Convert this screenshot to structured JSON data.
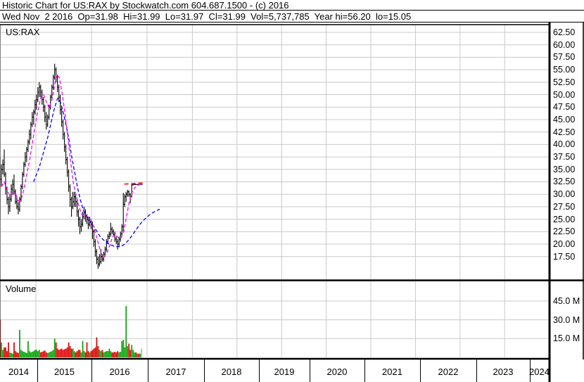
{
  "header": {
    "line1": "Historic Chart for US:RAX by Stockwatch.com 604.687.1500 - (c) 2016",
    "line2": "Wed Nov  2 2016  Op=31.98  Hi=31.99  Lo=31.97  Cl=31.99  Vol=5,737,785  Year hi=56.20  lo=15.05"
  },
  "price_panel": {
    "symbol_label": "US:RAX"
  },
  "volume_panel": {
    "label": "Volume"
  },
  "colors": {
    "grid": "#c9c9c9",
    "border": "#000000",
    "candle": "#000000",
    "down_tick": "#ff0000",
    "ma_fast": "#ff00ff",
    "ma_slow": "#0000ff",
    "deal_line": "#ff0000",
    "vol_up": "#00a400",
    "vol_down": "#dd0000",
    "vol_na": "#b0b0b0"
  },
  "chart_data": {
    "type": "candlestick+volume",
    "title": "Historic Chart for US:RAX",
    "symbol": "US:RAX",
    "quote": {
      "date": "Wed Nov 2 2016",
      "open": 31.98,
      "high": 31.99,
      "low": 31.97,
      "close": 31.99,
      "volume": "5,737,785",
      "year_high": 56.2,
      "year_low": 15.05
    },
    "price_axis": {
      "side": "right",
      "ticks": [
        "62.50",
        "60.00",
        "57.50",
        "55.00",
        "52.50",
        "50.00",
        "47.50",
        "45.00",
        "42.50",
        "40.00",
        "37.50",
        "35.00",
        "32.50",
        "30.00",
        "27.50",
        "25.00",
        "22.50",
        "20.00",
        "17.50"
      ],
      "range": [
        15.0,
        63.75
      ]
    },
    "volume_axis": {
      "side": "right",
      "ticks": [
        "45.0 M",
        "30.0 M",
        "15.0 M"
      ],
      "range_m": [
        0,
        60
      ]
    },
    "x_axis": {
      "years": [
        "2014",
        "2015",
        "2016",
        "2017",
        "2018",
        "2019",
        "2020",
        "2021",
        "2022",
        "2023",
        "2024"
      ],
      "grid": true
    },
    "weekly": {
      "start_year": 2014.355,
      "step_years": 0.0252,
      "bars_format": [
        "open",
        "high",
        "low",
        "close",
        "volume_m",
        "volume_color"
      ],
      "bars": [
        [
          36,
          37.5,
          25,
          33,
          30,
          "r"
        ],
        [
          33,
          36,
          31.5,
          35,
          12,
          "g"
        ],
        [
          35,
          37,
          34,
          36,
          6,
          "g"
        ],
        [
          36,
          39,
          33.5,
          34,
          8,
          "r"
        ],
        [
          34,
          34.5,
          30,
          31,
          8,
          "r"
        ],
        [
          31,
          31.5,
          28,
          29,
          5,
          "r"
        ],
        [
          29,
          29.5,
          26,
          27.5,
          12,
          "r"
        ],
        [
          27.5,
          30,
          26.5,
          29,
          4,
          "g"
        ],
        [
          29,
          32,
          28.5,
          31,
          3.5,
          "g"
        ],
        [
          31,
          33,
          30,
          32,
          3,
          "g"
        ],
        [
          32,
          34,
          30,
          30.5,
          12,
          "r"
        ],
        [
          30.5,
          31,
          28,
          28.5,
          5,
          "r"
        ],
        [
          28.5,
          29.5,
          27,
          27.5,
          4,
          "r"
        ],
        [
          27.5,
          28.5,
          26,
          27,
          3.5,
          "r"
        ],
        [
          27,
          29.5,
          26.5,
          29,
          22,
          "g"
        ],
        [
          29,
          32,
          28.5,
          31.5,
          6,
          "g"
        ],
        [
          31.5,
          34.5,
          31,
          34,
          5,
          "g"
        ],
        [
          34,
          36.5,
          33.5,
          36,
          4.5,
          "g"
        ],
        [
          36,
          38.5,
          35.5,
          37.5,
          4,
          "g"
        ],
        [
          37.5,
          39.5,
          36.5,
          39,
          3.5,
          "g"
        ],
        [
          39,
          41,
          38.5,
          40.5,
          13,
          "g"
        ],
        [
          40.5,
          43,
          40,
          42,
          5,
          "g"
        ],
        [
          42,
          44.5,
          41,
          44,
          4,
          "g"
        ],
        [
          44,
          46.5,
          43.5,
          45.5,
          4.5,
          "g"
        ],
        [
          45.5,
          47,
          44,
          46.5,
          5,
          "g"
        ],
        [
          46.5,
          49,
          46,
          48,
          6,
          "g"
        ],
        [
          48,
          50,
          47,
          49,
          6,
          "g"
        ],
        [
          49,
          51.5,
          48.5,
          50.5,
          5,
          "g"
        ],
        [
          50.5,
          52.5,
          49.5,
          51.5,
          6,
          "g"
        ],
        [
          51.5,
          52,
          49.5,
          50.5,
          4,
          "r"
        ],
        [
          50.5,
          51,
          48,
          49,
          4.5,
          "r"
        ],
        [
          49,
          49.5,
          46.5,
          47.5,
          5,
          "r"
        ],
        [
          47.5,
          48,
          44.5,
          45.5,
          5.5,
          "r"
        ],
        [
          45.5,
          46.5,
          43,
          44,
          4,
          "r"
        ],
        [
          44,
          46,
          43.5,
          45.5,
          3.5,
          "g"
        ],
        [
          45.5,
          48,
          45,
          47.5,
          4,
          "g"
        ],
        [
          47.5,
          50,
          47,
          49.5,
          4.5,
          "g"
        ],
        [
          49.5,
          52,
          49,
          51.5,
          5,
          "g"
        ],
        [
          51.5,
          54,
          51,
          53.5,
          6,
          "g"
        ],
        [
          53.5,
          56.2,
          53,
          55,
          15,
          "g"
        ],
        [
          55,
          55.5,
          52.5,
          53.5,
          12,
          "r"
        ],
        [
          53.5,
          54,
          50.5,
          51.5,
          7,
          "r"
        ],
        [
          51.5,
          52,
          48.5,
          49.5,
          6,
          "r"
        ],
        [
          49.5,
          50,
          46,
          47,
          6.5,
          "r"
        ],
        [
          47,
          47.5,
          43.5,
          44.5,
          7,
          "r"
        ],
        [
          44.5,
          45,
          41,
          42,
          6,
          "r"
        ],
        [
          42,
          42.5,
          38.5,
          39.5,
          6.5,
          "r"
        ],
        [
          39.5,
          40,
          36,
          37,
          7,
          "r"
        ],
        [
          37,
          37.5,
          33.5,
          34.5,
          8,
          "r"
        ],
        [
          34.5,
          35,
          30.5,
          31.5,
          12,
          "r"
        ],
        [
          31.5,
          32,
          27.5,
          29,
          9,
          "r"
        ],
        [
          29,
          29.5,
          25.5,
          27.5,
          7,
          "r"
        ],
        [
          27.5,
          30.5,
          27,
          28.5,
          7,
          "g"
        ],
        [
          28.5,
          30.5,
          27.5,
          29.5,
          5,
          "g"
        ],
        [
          29.5,
          30,
          27.5,
          28.5,
          4,
          "r"
        ],
        [
          28.5,
          29,
          25.5,
          26.5,
          5,
          "r"
        ],
        [
          26.5,
          27,
          23.5,
          25,
          6,
          "r"
        ],
        [
          25,
          25.5,
          22,
          23.5,
          6,
          "r"
        ],
        [
          23.5,
          25,
          22.5,
          24,
          4,
          "g"
        ],
        [
          24,
          26.5,
          23.5,
          25.5,
          13,
          "g"
        ],
        [
          25.5,
          27.5,
          25,
          26.5,
          5,
          "g"
        ],
        [
          26.5,
          27,
          24.5,
          25.5,
          4,
          "r"
        ],
        [
          25.5,
          26,
          24,
          25,
          12,
          "r"
        ],
        [
          25,
          25.5,
          23,
          24,
          5,
          "r"
        ],
        [
          24,
          25.5,
          23.5,
          24.5,
          4,
          "g"
        ],
        [
          24.5,
          25,
          23,
          24,
          5,
          "r"
        ],
        [
          24,
          24.5,
          21,
          22.5,
          6,
          "r"
        ],
        [
          22.5,
          23,
          19.5,
          20.5,
          7,
          "r"
        ],
        [
          20.5,
          21,
          17.5,
          18.5,
          8,
          "r"
        ],
        [
          18.5,
          19,
          16,
          17,
          16,
          "r"
        ],
        [
          17,
          17.5,
          15.05,
          16,
          9,
          "r"
        ],
        [
          16,
          18,
          15.5,
          16.5,
          6,
          "g"
        ],
        [
          16.5,
          19,
          16,
          17.5,
          5,
          "g"
        ],
        [
          17.5,
          18,
          16.5,
          17,
          6,
          "r"
        ],
        [
          17,
          18.5,
          16.5,
          18,
          4,
          "g"
        ],
        [
          18,
          19.5,
          17.5,
          19,
          4.5,
          "g"
        ],
        [
          19,
          21,
          18.5,
          20.5,
          5,
          "g"
        ],
        [
          20.5,
          22,
          20,
          21.5,
          5,
          "g"
        ],
        [
          21.5,
          22.5,
          21,
          22,
          7,
          "g"
        ],
        [
          22,
          24.3,
          21.5,
          23,
          5,
          "g"
        ],
        [
          23,
          23.5,
          22,
          22.5,
          4,
          "r"
        ],
        [
          22.5,
          23,
          21.5,
          22,
          4,
          "r"
        ],
        [
          22,
          22.5,
          20.5,
          21,
          4.5,
          "r"
        ],
        [
          21,
          21.5,
          20,
          20.5,
          4,
          "r"
        ],
        [
          20.5,
          21,
          18.9,
          20,
          5,
          "r"
        ],
        [
          20,
          21.5,
          19.5,
          21,
          4,
          "g"
        ],
        [
          21,
          22.5,
          20.5,
          22,
          4.5,
          "g"
        ],
        [
          22,
          24,
          21.5,
          23.5,
          13,
          "g"
        ],
        [
          23.5,
          30.3,
          22.5,
          28,
          14,
          "g"
        ],
        [
          28,
          30,
          27.5,
          29.5,
          8,
          "g"
        ],
        [
          29.5,
          30.5,
          28.5,
          30,
          41,
          "g"
        ],
        [
          30,
          30.9,
          29.5,
          30.5,
          9,
          "g"
        ],
        [
          30.5,
          30.8,
          29.5,
          30,
          11,
          "r"
        ],
        [
          30,
          30.2,
          28.2,
          29.5,
          6,
          "r"
        ],
        [
          29.5,
          32,
          29.4,
          31.9,
          10,
          "g"
        ],
        [
          31.9,
          32,
          31.8,
          31.95,
          6,
          "g"
        ],
        [
          31.95,
          32,
          31.9,
          31.97,
          4,
          "g"
        ],
        [
          31.97,
          32,
          31.9,
          31.96,
          4,
          "r"
        ],
        [
          31.96,
          32,
          31.93,
          31.98,
          3,
          "g"
        ],
        [
          31.98,
          32,
          31.95,
          31.97,
          3,
          "r"
        ],
        [
          31.97,
          32,
          31.96,
          31.99,
          3,
          "g"
        ],
        [
          31.99,
          32.05,
          31.9,
          31.99,
          7,
          "y"
        ]
      ]
    },
    "ma_fast": {
      "name": "short moving average",
      "points": [
        [
          2014.38,
          31.5
        ],
        [
          2014.43,
          32.5
        ],
        [
          2014.48,
          31
        ],
        [
          2014.53,
          29.8
        ],
        [
          2014.58,
          29.9
        ],
        [
          2014.63,
          30.3
        ],
        [
          2014.68,
          28.7
        ],
        [
          2014.73,
          28.8
        ],
        [
          2014.785,
          31
        ],
        [
          2014.835,
          34
        ],
        [
          2014.89,
          37
        ],
        [
          2014.94,
          40.5
        ],
        [
          2014.99,
          44
        ],
        [
          2015.04,
          47
        ],
        [
          2015.09,
          49.5
        ],
        [
          2015.14,
          50
        ],
        [
          2015.19,
          48.5
        ],
        [
          2015.24,
          47.3
        ],
        [
          2015.29,
          49
        ],
        [
          2015.34,
          52
        ],
        [
          2015.37,
          54
        ],
        [
          2015.42,
          53.5
        ],
        [
          2015.47,
          50.5
        ],
        [
          2015.52,
          46.5
        ],
        [
          2015.57,
          42
        ],
        [
          2015.62,
          37
        ],
        [
          2015.67,
          32.5
        ],
        [
          2015.72,
          30
        ],
        [
          2015.77,
          27.8
        ],
        [
          2015.82,
          26
        ],
        [
          2015.87,
          25.8
        ],
        [
          2015.92,
          25.6
        ],
        [
          2015.975,
          25.2
        ],
        [
          2016.025,
          24
        ],
        [
          2016.08,
          22
        ],
        [
          2016.13,
          19.8
        ],
        [
          2016.18,
          18
        ],
        [
          2016.23,
          17.5
        ],
        [
          2016.28,
          18.3
        ],
        [
          2016.33,
          19.8
        ],
        [
          2016.38,
          21.5
        ],
        [
          2016.43,
          22
        ],
        [
          2016.48,
          21.3
        ],
        [
          2016.53,
          21.2
        ],
        [
          2016.58,
          22.5
        ],
        [
          2016.63,
          25.5
        ],
        [
          2016.68,
          28.5
        ],
        [
          2016.735,
          30.5
        ],
        [
          2016.785,
          31.4
        ],
        [
          2016.835,
          31.8
        ],
        [
          2016.886,
          31.95
        ]
      ]
    },
    "ma_slow": {
      "name": "long moving average",
      "points": [
        [
          2014.96,
          32.5
        ],
        [
          2015.01,
          34
        ],
        [
          2015.063,
          35.5
        ],
        [
          2015.114,
          37.5
        ],
        [
          2015.165,
          39.5
        ],
        [
          2015.215,
          41.5
        ],
        [
          2015.266,
          44
        ],
        [
          2015.316,
          46.5
        ],
        [
          2015.367,
          48.5
        ],
        [
          2015.392,
          49.3
        ],
        [
          2015.443,
          48.5
        ],
        [
          2015.49,
          46.5
        ],
        [
          2015.54,
          44
        ],
        [
          2015.595,
          41
        ],
        [
          2015.646,
          37.5
        ],
        [
          2015.696,
          34.5
        ],
        [
          2015.747,
          31.5
        ],
        [
          2015.797,
          29
        ],
        [
          2015.848,
          27
        ],
        [
          2015.899,
          25.8
        ],
        [
          2015.949,
          25
        ],
        [
          2016.0,
          24.2
        ],
        [
          2016.05,
          23.4
        ],
        [
          2016.1,
          22.5
        ],
        [
          2016.15,
          21.6
        ],
        [
          2016.2,
          21
        ],
        [
          2016.253,
          20.5
        ],
        [
          2016.3,
          20.1
        ],
        [
          2016.354,
          19.8
        ],
        [
          2016.405,
          19.6
        ],
        [
          2016.456,
          19.5
        ],
        [
          2016.506,
          19.5
        ],
        [
          2016.557,
          19.7
        ],
        [
          2016.608,
          20.1
        ],
        [
          2016.658,
          20.7
        ],
        [
          2016.709,
          21.4
        ],
        [
          2016.76,
          22.2
        ],
        [
          2016.81,
          23
        ],
        [
          2016.86,
          23.8
        ],
        [
          2016.91,
          24.5
        ],
        [
          2016.975,
          25.2
        ],
        [
          2017.03,
          25.8
        ],
        [
          2017.11,
          26.3
        ],
        [
          2017.19,
          26.7
        ],
        [
          2017.27,
          27
        ]
      ]
    },
    "deal_line": {
      "name": "takeover price line",
      "price_from": 32.05,
      "price_to": 32.3,
      "t_from": 2016.59,
      "t_to": 2016.95
    }
  }
}
